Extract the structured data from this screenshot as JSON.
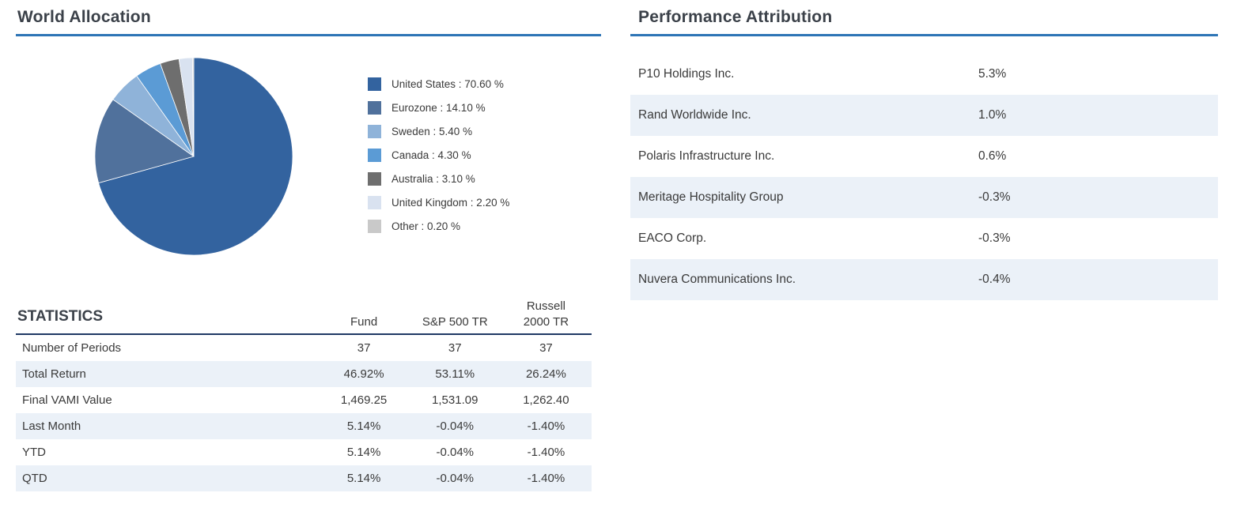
{
  "world_allocation": {
    "title": "World Allocation"
  },
  "statistics": {
    "title": "STATISTICS",
    "columns": [
      "Fund",
      "S&P 500 TR",
      "Russell\n2000 TR"
    ],
    "rows": [
      {
        "label": "Number of Periods",
        "values": [
          "37",
          "37",
          "37"
        ]
      },
      {
        "label": "Total Return",
        "values": [
          "46.92%",
          "53.11%",
          "26.24%"
        ]
      },
      {
        "label": "Final VAMI Value",
        "values": [
          "1,469.25",
          "1,531.09",
          "1,262.40"
        ]
      },
      {
        "label": "Last Month",
        "values": [
          "5.14%",
          "-0.04%",
          "-1.40%"
        ]
      },
      {
        "label": "YTD",
        "values": [
          "5.14%",
          "-0.04%",
          "-1.40%"
        ]
      },
      {
        "label": "QTD",
        "values": [
          "5.14%",
          "-0.04%",
          "-1.40%"
        ]
      }
    ]
  },
  "performance_attribution": {
    "title": "Performance Attribution",
    "rows": [
      {
        "name": "P10 Holdings Inc.",
        "value": "5.3%"
      },
      {
        "name": "Rand Worldwide Inc.",
        "value": "1.0%"
      },
      {
        "name": "Polaris Infrastructure Inc.",
        "value": "0.6%"
      },
      {
        "name": "Meritage Hospitality Group",
        "value": "-0.3%"
      },
      {
        "name": "EACO Corp.",
        "value": "-0.3%"
      },
      {
        "name": "Nuvera Communications Inc.",
        "value": "-0.4%"
      }
    ]
  },
  "chart_data": [
    {
      "type": "pie",
      "title": "World Allocation",
      "labels": [
        "United States",
        "Eurozone",
        "Sweden",
        "Canada",
        "Australia",
        "United Kingdom",
        "Other"
      ],
      "values": [
        70.6,
        14.1,
        5.4,
        4.3,
        3.1,
        2.2,
        0.2
      ],
      "colors": [
        "#33639F",
        "#50719C",
        "#8FB3D9",
        "#5B9BD5",
        "#6E6E6E",
        "#D9E2F0",
        "#C9C9C9"
      ],
      "legend_label_format": "{label} : {value} %",
      "start_angle": "top",
      "direction": "clockwise",
      "legend_position": "right"
    },
    {
      "type": "table",
      "title": "STATISTICS",
      "columns": [
        "",
        "Fund",
        "S&P 500 TR",
        "Russell 2000 TR"
      ],
      "rows": [
        [
          "Number of Periods",
          "37",
          "37",
          "37"
        ],
        [
          "Total Return",
          "46.92%",
          "53.11%",
          "26.24%"
        ],
        [
          "Final VAMI Value",
          "1,469.25",
          "1,531.09",
          "1,262.40"
        ],
        [
          "Last Month",
          "5.14%",
          "-0.04%",
          "-1.40%"
        ],
        [
          "YTD",
          "5.14%",
          "-0.04%",
          "-1.40%"
        ],
        [
          "QTD",
          "5.14%",
          "-0.04%",
          "-1.40%"
        ]
      ]
    }
  ],
  "colors": {
    "accent": "#2E75B6",
    "header_border": "#1F3864",
    "stripe": "#EBF1F8",
    "heading_text": "#3B4149",
    "body_text": "#3A3A3A"
  }
}
